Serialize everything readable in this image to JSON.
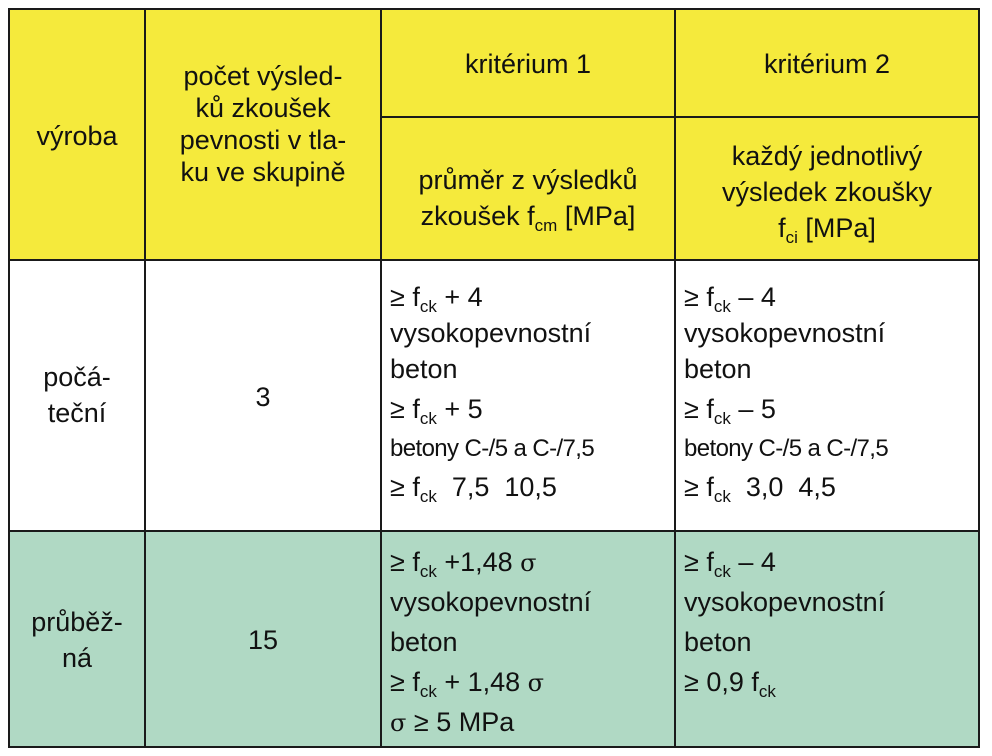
{
  "header": {
    "col_vyroba": "výroba",
    "col_pocet": [
      "počet výsled-",
      "ků zkoušek",
      "pevnosti v tla-",
      "ku ve skupině"
    ],
    "kriterium1": "kritérium 1",
    "kriterium2": "kritérium 2",
    "k1_desc_line1": "průměr z výsledků",
    "k1_desc_line2": "zkoušek f",
    "k1_desc_sub": "cm",
    "k1_desc_unit": " [MPa]",
    "k2_desc_line1": "každý jednotlivý",
    "k2_desc_line2": "výsledek zkoušky",
    "k2_desc_line3": "f",
    "k2_desc_sub": "ci",
    "k2_desc_unit": " [MPa]"
  },
  "rows": [
    {
      "vyroba": [
        "počá-",
        "teční"
      ],
      "pocet": "3",
      "k1": {
        "l1a": "≥ f",
        "l1sub": "ck",
        "l1b": " + 4",
        "l2": "vysokopevnostní",
        "l3": "beton",
        "l4a": "≥ f",
        "l4sub": "ck",
        "l4b": " + 5",
        "l5": "betony C-/5 a C-/7,5",
        "l6a": "≥ f",
        "l6sub": "ck",
        "l6b": "  7,5  10,5"
      },
      "k2": {
        "l1a": "≥ f",
        "l1sub": "ck",
        "l1b": " – 4",
        "l2": "vysokopevnostní",
        "l3": "beton",
        "l4a": "≥ f",
        "l4sub": "ck",
        "l4b": " – 5",
        "l5": "betony C-/5 a C-/7,5",
        "l6a": "≥ f",
        "l6sub": "ck",
        "l6b": "  3,0  4,5"
      }
    },
    {
      "vyroba": [
        "průběž-",
        "ná"
      ],
      "pocet": "15",
      "k1": {
        "l1a": "≥ f",
        "l1sub": "ck",
        "l1b": " +1,48 ",
        "l1sig": "σ",
        "l2": "vysokopevnostní",
        "l3": "beton",
        "l4a": "≥ f",
        "l4sub": "ck",
        "l4b": " + 1,48 ",
        "l4sig": "σ",
        "l5sig": "σ",
        "l5b": " ≥ 5 MPa"
      },
      "k2": {
        "l1a": "≥ f",
        "l1sub": "ck",
        "l1b": " – 4",
        "l2": "vysokopevnostní",
        "l3": "beton",
        "l4a": "≥ 0,9 f",
        "l4sub": "ck"
      }
    }
  ],
  "colors": {
    "header_bg": "#f5ea3c",
    "row1_bg": "#ffffff",
    "row2_bg": "#b0d9c4",
    "border": "#1a1a1a"
  }
}
